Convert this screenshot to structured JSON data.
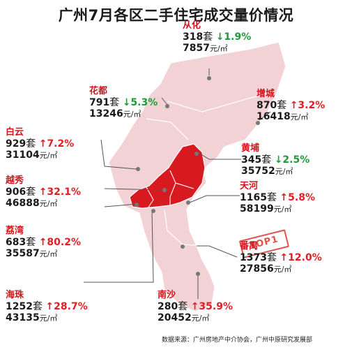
{
  "title": "广州7月各区二手住宅成交量价情况",
  "source": "数据来源：广州房地产中介协会，广州中原研究发展部",
  "stamp": "TOP1",
  "colors": {
    "map_light": "#f2d2d4",
    "map_core": "#d81a20",
    "up": "#e21d24",
    "down": "#1f9a3a",
    "name": "#d0161c"
  },
  "districts": [
    {
      "key": "conghua",
      "name": "从化",
      "volume": "318",
      "unit_vol": "套",
      "arrow": "↓",
      "change": "1.9%",
      "dir": "down",
      "price": "7857",
      "unit_price": "元/㎡"
    },
    {
      "key": "huadu",
      "name": "花都",
      "volume": "791",
      "unit_vol": "套",
      "arrow": "↓",
      "change": "5.3%",
      "dir": "down",
      "price": "13246",
      "unit_price": "元/㎡"
    },
    {
      "key": "zengcheng",
      "name": "增城",
      "volume": "870",
      "unit_vol": "套",
      "arrow": "↑",
      "change": "3.2%",
      "dir": "up",
      "price": "16418",
      "unit_price": "元/㎡"
    },
    {
      "key": "baiyun",
      "name": "白云",
      "volume": "929",
      "unit_vol": "套",
      "arrow": "↑",
      "change": "7.2%",
      "dir": "up",
      "price": "31104",
      "unit_price": "元/㎡"
    },
    {
      "key": "huangpu",
      "name": "黄埔",
      "volume": "345",
      "unit_vol": "套",
      "arrow": "↓",
      "change": "2.5%",
      "dir": "down",
      "price": "35752",
      "unit_price": "元/㎡"
    },
    {
      "key": "yuexiu",
      "name": "越秀",
      "volume": "906",
      "unit_vol": "套",
      "arrow": "↑",
      "change": "32.1%",
      "dir": "up",
      "price": "46888",
      "unit_price": "元/㎡"
    },
    {
      "key": "tianhe",
      "name": "天河",
      "volume": "1165",
      "unit_vol": "套",
      "arrow": "↑",
      "change": "5.8%",
      "dir": "up",
      "price": "58199",
      "unit_price": "元/㎡"
    },
    {
      "key": "liwan",
      "name": "荔湾",
      "volume": "683",
      "unit_vol": "套",
      "arrow": "↑",
      "change": "80.2%",
      "dir": "up",
      "price": "35587",
      "unit_price": "元/㎡"
    },
    {
      "key": "panyu",
      "name": "番禺",
      "volume": "1373",
      "unit_vol": "套",
      "arrow": "↑",
      "change": "12.0%",
      "dir": "up",
      "price": "27856",
      "unit_price": "元/㎡"
    },
    {
      "key": "haizhu",
      "name": "海珠",
      "volume": "1252",
      "unit_vol": "套",
      "arrow": "↑",
      "change": "28.7%",
      "dir": "up",
      "price": "43135",
      "unit_price": "元/㎡"
    },
    {
      "key": "nansha",
      "name": "南沙",
      "volume": "280",
      "unit_vol": "套",
      "arrow": "↑",
      "change": "35.9%",
      "dir": "up",
      "price": "20452",
      "unit_price": "元/㎡"
    }
  ]
}
